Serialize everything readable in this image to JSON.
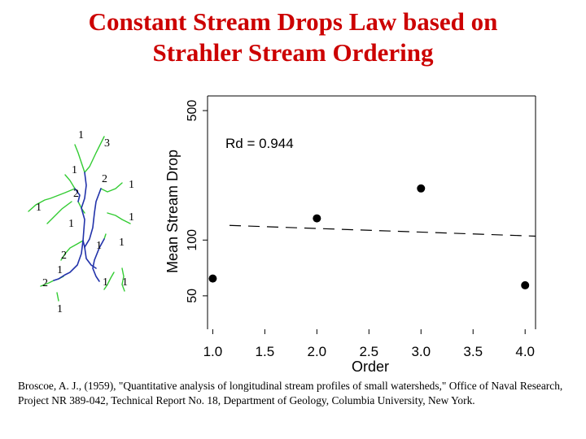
{
  "title": {
    "line1": "Constant Stream Drops Law based on",
    "line2": "Strahler Stream Ordering"
  },
  "colors": {
    "title": "#cc0000",
    "stream_green": "#33cc33",
    "stream_blue": "#2233aa",
    "text": "#000000"
  },
  "diagram": {
    "caption": "Strahler stream network",
    "order_labels": [
      "1",
      "3",
      "1",
      "2",
      "2",
      "1",
      "1",
      "1",
      "1",
      "1",
      "2",
      "1",
      "1",
      "2",
      "1",
      "1",
      "1",
      "1"
    ]
  },
  "chart_data": {
    "type": "scatter",
    "title": "",
    "xlabel": "Order",
    "ylabel": "Mean Stream Drop",
    "x_ticks": [
      "1.0",
      "1.5",
      "2.0",
      "2.5",
      "3.0",
      "3.5",
      "4.0"
    ],
    "y_ticks": [
      "50",
      "100",
      "500"
    ],
    "xlim": [
      0.95,
      4.1
    ],
    "ylim_log": [
      33,
      600
    ],
    "log_y": true,
    "points": [
      {
        "x": 1.0,
        "y": 62
      },
      {
        "x": 2.0,
        "y": 131
      },
      {
        "x": 3.0,
        "y": 190
      },
      {
        "x": 4.0,
        "y": 57
      }
    ],
    "fit_line": {
      "style": "dashed",
      "y_start": 120,
      "y_end": 105
    },
    "annotation": "Rd = 0.944"
  },
  "citation": "Broscoe, A. J., (1959), \"Quantitative analysis of longitudinal stream profiles of small watersheds,\" Office of Naval Research, Project NR 389-042, Technical Report No. 18, Department of Geology, Columbia University, New York."
}
